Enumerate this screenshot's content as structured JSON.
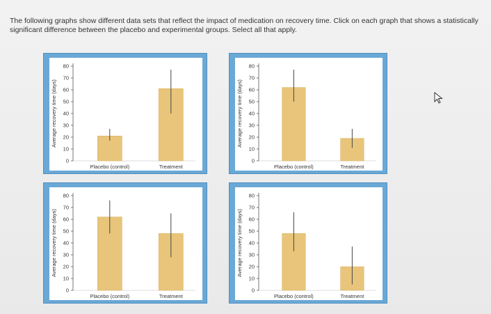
{
  "question": {
    "text": "The following graphs show different data sets that reflect the impact of medication on recovery time. Click on each graph that shows a statistically significant difference between the placebo and experimental groups. Select all that apply."
  },
  "colors": {
    "card_border": "#6aa8d6",
    "bar": "#e8c57a",
    "bar_edge": "#d9b060",
    "panel_bg": "#ffffff"
  },
  "icons": {
    "cursor": "mouse-pointer-icon"
  },
  "chart_data": [
    {
      "type": "bar",
      "categories": [
        "Placebo (control)",
        "Treatment"
      ],
      "values": [
        21,
        61
      ],
      "error_low": [
        17,
        40
      ],
      "error_high": [
        27,
        77
      ],
      "ylabel": "Average recovery time (days)",
      "ylim": [
        0,
        80
      ],
      "yticks": [
        "0",
        "10",
        "20",
        "30",
        "40",
        "50",
        "60",
        "70",
        "80"
      ]
    },
    {
      "type": "bar",
      "categories": [
        "Placebo (control)",
        "Treatment"
      ],
      "values": [
        62,
        19
      ],
      "error_low": [
        50,
        11
      ],
      "error_high": [
        77,
        27
      ],
      "ylabel": "Average recovery time (days)",
      "ylim": [
        0,
        80
      ],
      "yticks": [
        "0",
        "10",
        "20",
        "30",
        "40",
        "50",
        "60",
        "70",
        "80"
      ]
    },
    {
      "type": "bar",
      "categories": [
        "Placebo (control)",
        "Treatment"
      ],
      "values": [
        62,
        48
      ],
      "error_low": [
        48,
        28
      ],
      "error_high": [
        76,
        65
      ],
      "ylabel": "Average recovery time (days)",
      "ylim": [
        0,
        80
      ],
      "yticks": [
        "0",
        "10",
        "20",
        "30",
        "40",
        "50",
        "60",
        "70",
        "80"
      ]
    },
    {
      "type": "bar",
      "categories": [
        "Placebo (control)",
        "Treatment"
      ],
      "values": [
        48,
        20
      ],
      "error_low": [
        33,
        5
      ],
      "error_high": [
        66,
        37
      ],
      "ylabel": "Average recovery time (days)",
      "ylim": [
        0,
        80
      ],
      "yticks": [
        "0",
        "10",
        "20",
        "30",
        "40",
        "50",
        "60",
        "70",
        "80"
      ]
    }
  ]
}
